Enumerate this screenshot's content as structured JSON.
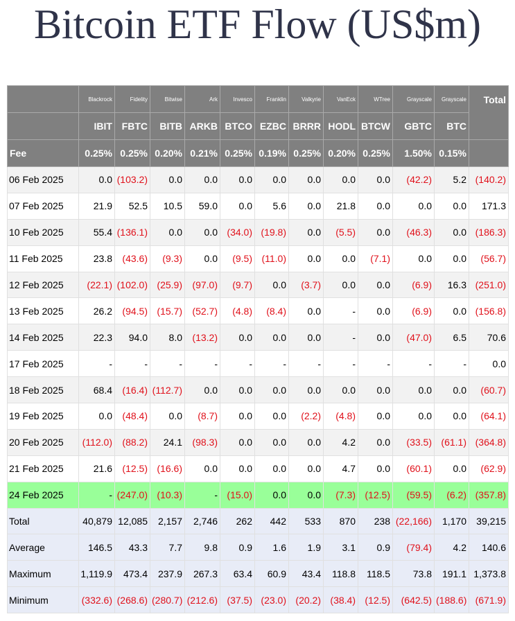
{
  "header": {
    "title": "Bitcoin ETF Flow (US$m)"
  },
  "table": {
    "issuers": [
      "Blackrock",
      "Fidelity",
      "Bitwise",
      "Ark",
      "Invesco",
      "Franklin",
      "Valkyrie",
      "VanEck",
      "WTree",
      "Grayscale",
      "Grayscale"
    ],
    "total_label": "Total",
    "tickers": [
      "IBIT",
      "FBTC",
      "BITB",
      "ARKB",
      "BTCO",
      "EZBC",
      "BRRR",
      "HODL",
      "BTCW",
      "GBTC",
      "BTC"
    ],
    "fee_label": "Fee",
    "fees": [
      "0.25%",
      "0.25%",
      "0.20%",
      "0.21%",
      "0.25%",
      "0.19%",
      "0.25%",
      "0.20%",
      "0.25%",
      "1.50%",
      "0.15%"
    ],
    "rows": [
      [
        "06 Feb 2025",
        "0.0",
        "(103.2)",
        "0.0",
        "0.0",
        "0.0",
        "0.0",
        "0.0",
        "0.0",
        "0.0",
        "(42.2)",
        "5.2",
        "(140.2)"
      ],
      [
        "07 Feb 2025",
        "21.9",
        "52.5",
        "10.5",
        "59.0",
        "0.0",
        "5.6",
        "0.0",
        "21.8",
        "0.0",
        "0.0",
        "0.0",
        "171.3"
      ],
      [
        "10 Feb 2025",
        "55.4",
        "(136.1)",
        "0.0",
        "0.0",
        "(34.0)",
        "(19.8)",
        "0.0",
        "(5.5)",
        "0.0",
        "(46.3)",
        "0.0",
        "(186.3)"
      ],
      [
        "11 Feb 2025",
        "23.8",
        "(43.6)",
        "(9.3)",
        "0.0",
        "(9.5)",
        "(11.0)",
        "0.0",
        "0.0",
        "(7.1)",
        "0.0",
        "0.0",
        "(56.7)"
      ],
      [
        "12 Feb 2025",
        "(22.1)",
        "(102.0)",
        "(25.9)",
        "(97.0)",
        "(9.7)",
        "0.0",
        "(3.7)",
        "0.0",
        "0.0",
        "(6.9)",
        "16.3",
        "(251.0)"
      ],
      [
        "13 Feb 2025",
        "26.2",
        "(94.5)",
        "(15.7)",
        "(52.7)",
        "(4.8)",
        "(8.4)",
        "0.0",
        "-",
        "0.0",
        "(6.9)",
        "0.0",
        "(156.8)"
      ],
      [
        "14 Feb 2025",
        "22.3",
        "94.0",
        "8.0",
        "(13.2)",
        "0.0",
        "0.0",
        "0.0",
        "-",
        "0.0",
        "(47.0)",
        "6.5",
        "70.6"
      ],
      [
        "17 Feb 2025",
        "-",
        "-",
        "-",
        "-",
        "-",
        "-",
        "-",
        "-",
        "-",
        "-",
        "-",
        "0.0"
      ],
      [
        "18 Feb 2025",
        "68.4",
        "(16.4)",
        "(112.7)",
        "0.0",
        "0.0",
        "0.0",
        "0.0",
        "0.0",
        "0.0",
        "0.0",
        "0.0",
        "(60.7)"
      ],
      [
        "19 Feb 2025",
        "0.0",
        "(48.4)",
        "0.0",
        "(8.7)",
        "0.0",
        "0.0",
        "(2.2)",
        "(4.8)",
        "0.0",
        "0.0",
        "0.0",
        "(64.1)"
      ],
      [
        "20 Feb 2025",
        "(112.0)",
        "(88.2)",
        "24.1",
        "(98.3)",
        "0.0",
        "0.0",
        "0.0",
        "4.2",
        "0.0",
        "(33.5)",
        "(61.1)",
        "(364.8)"
      ],
      [
        "21 Feb 2025",
        "21.6",
        "(12.5)",
        "(16.6)",
        "0.0",
        "0.0",
        "0.0",
        "0.0",
        "4.7",
        "0.0",
        "(60.1)",
        "0.0",
        "(62.9)"
      ],
      [
        "24 Feb 2025",
        "-",
        "(247.0)",
        "(10.3)",
        "-",
        "(15.0)",
        "0.0",
        "0.0",
        "(7.3)",
        "(12.5)",
        "(59.5)",
        "(6.2)",
        "(357.8)"
      ]
    ],
    "summary": [
      [
        "Total",
        "40,879",
        "12,085",
        "2,157",
        "2,746",
        "262",
        "442",
        "533",
        "870",
        "238",
        "(22,166)",
        "1,170",
        "39,215"
      ],
      [
        "Average",
        "146.5",
        "43.3",
        "7.7",
        "9.8",
        "0.9",
        "1.6",
        "1.9",
        "3.1",
        "0.9",
        "(79.4)",
        "4.2",
        "140.6"
      ],
      [
        "Maximum",
        "1,119.9",
        "473.4",
        "237.9",
        "267.3",
        "63.4",
        "60.9",
        "43.4",
        "118.8",
        "118.5",
        "73.8",
        "191.1",
        "1,373.8"
      ],
      [
        "Minimum",
        "(332.6)",
        "(268.6)",
        "(280.7)",
        "(212.6)",
        "(37.5)",
        "(23.0)",
        "(20.2)",
        "(38.4)",
        "(12.5)",
        "(642.5)",
        "(188.6)",
        "(671.9)"
      ]
    ]
  }
}
